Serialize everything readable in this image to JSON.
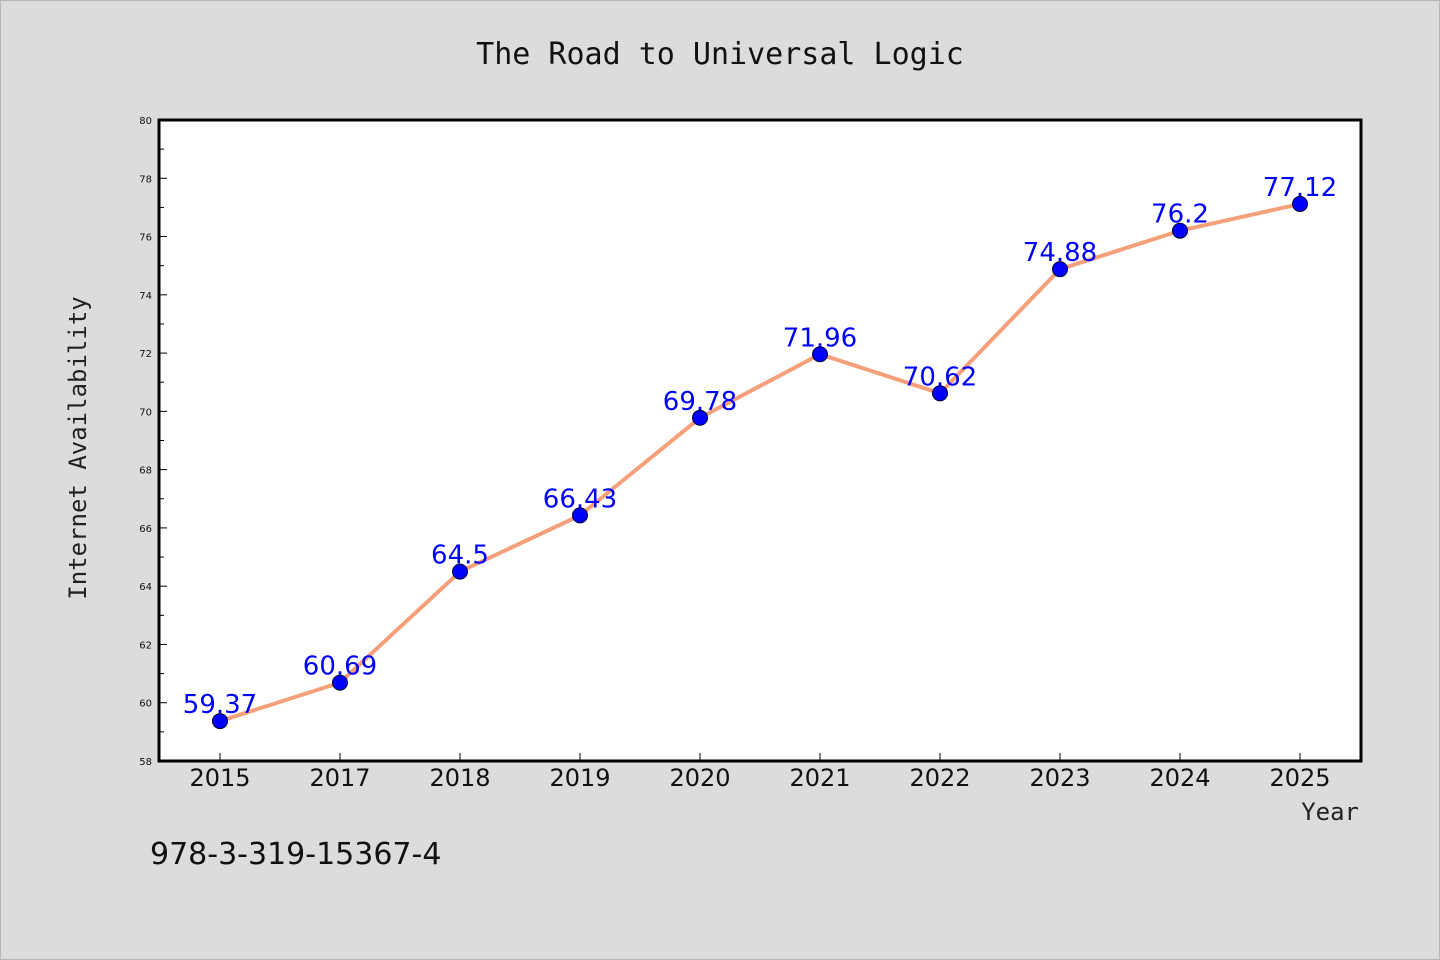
{
  "chart_data": {
    "type": "line",
    "title": "The Road to Universal Logic",
    "xlabel": "Year",
    "ylabel": "Internet Availability",
    "categories": [
      "2015",
      "2017",
      "2018",
      "2019",
      "2020",
      "2021",
      "2022",
      "2023",
      "2024",
      "2025"
    ],
    "series": [
      {
        "values": [
          59.37,
          60.69,
          64.5,
          66.43,
          69.78,
          71.96,
          70.62,
          74.88,
          76.2,
          77.12
        ]
      }
    ],
    "ylim": [
      58,
      80
    ],
    "yticks": [
      58,
      60,
      62,
      64,
      66,
      68,
      70,
      72,
      74,
      76,
      78,
      80
    ],
    "grid": false,
    "colors": {
      "line": "#f4a07a",
      "marker": "#0000ff",
      "label": "#0000ff",
      "plot_background": "#ffffff",
      "page_background": "#dcdcdc"
    }
  },
  "footer": {
    "isbn": "978-3-319-15367-4"
  }
}
